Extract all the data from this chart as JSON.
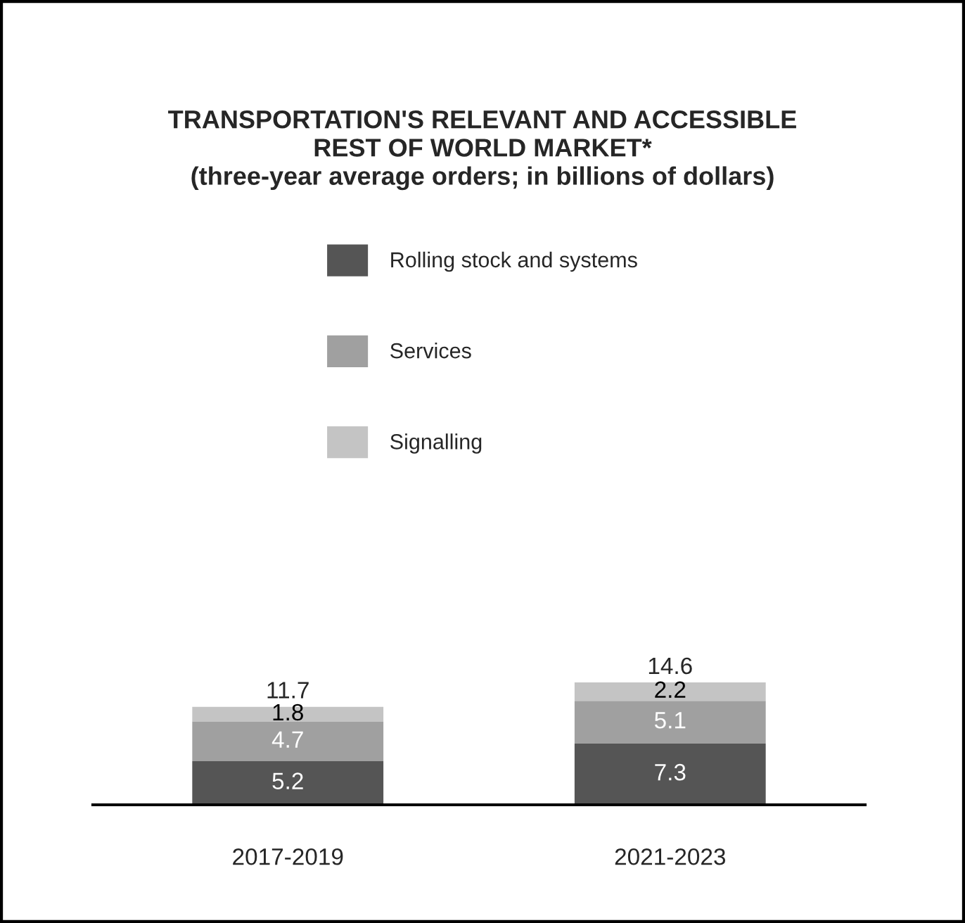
{
  "chart_data": {
    "type": "bar",
    "title": "TRANSPORTATION'S RELEVANT AND ACCESSIBLE\nREST OF WORLD MARKET*\n(three-year average orders; in billions of dollars)",
    "categories": [
      "2017-2019",
      "2021-2023"
    ],
    "stacked": true,
    "data_labels": true,
    "legend": "top",
    "grid": false,
    "series": [
      {
        "name": "Rolling stock and systems",
        "color": "#555555",
        "values": [
          5.2,
          7.3
        ]
      },
      {
        "name": "Services",
        "color": "#a0a0a0",
        "values": [
          4.7,
          5.1
        ]
      },
      {
        "name": "Signalling",
        "color": "#c4c4c4",
        "values": [
          1.8,
          2.2
        ]
      }
    ],
    "totals": [
      "11.7",
      "14.6"
    ]
  }
}
